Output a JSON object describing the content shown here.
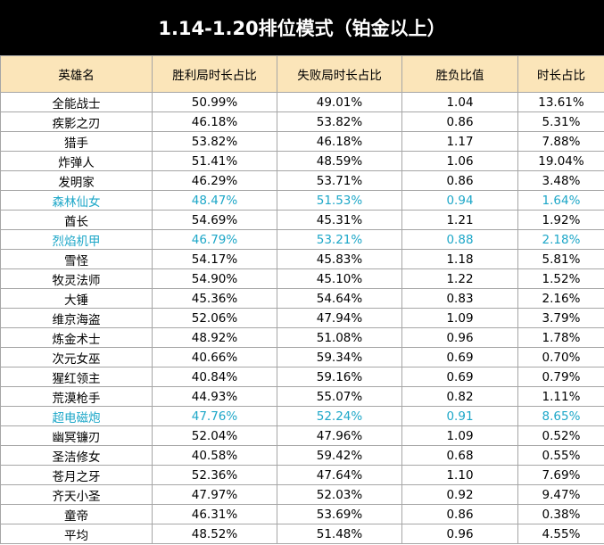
{
  "title": "1.14-1.20排位模式（铂金以上）",
  "colors": {
    "title_bg": "#000000",
    "header_bg": "#fbe5b9",
    "highlight_text": "#1da7c8",
    "border": "#a6a6a6"
  },
  "columns": [
    "英雄名",
    "胜利局时长占比",
    "失败局时长占比",
    "胜负比值",
    "时长占比"
  ],
  "rows": [
    {
      "name": "全能战士",
      "win": "50.99%",
      "lose": "49.01%",
      "ratio": "1.04",
      "share": "13.61%",
      "highlight": false
    },
    {
      "name": "疾影之刃",
      "win": "46.18%",
      "lose": "53.82%",
      "ratio": "0.86",
      "share": "5.31%",
      "highlight": false
    },
    {
      "name": "猎手",
      "win": "53.82%",
      "lose": "46.18%",
      "ratio": "1.17",
      "share": "7.88%",
      "highlight": false
    },
    {
      "name": "炸弹人",
      "win": "51.41%",
      "lose": "48.59%",
      "ratio": "1.06",
      "share": "19.04%",
      "highlight": false
    },
    {
      "name": "发明家",
      "win": "46.29%",
      "lose": "53.71%",
      "ratio": "0.86",
      "share": "3.48%",
      "highlight": false
    },
    {
      "name": "森林仙女",
      "win": "48.47%",
      "lose": "51.53%",
      "ratio": "0.94",
      "share": "1.64%",
      "highlight": true
    },
    {
      "name": "酋长",
      "win": "54.69%",
      "lose": "45.31%",
      "ratio": "1.21",
      "share": "1.92%",
      "highlight": false
    },
    {
      "name": "烈焰机甲",
      "win": "46.79%",
      "lose": "53.21%",
      "ratio": "0.88",
      "share": "2.18%",
      "highlight": true
    },
    {
      "name": "雪怪",
      "win": "54.17%",
      "lose": "45.83%",
      "ratio": "1.18",
      "share": "5.81%",
      "highlight": false
    },
    {
      "name": "牧灵法师",
      "win": "54.90%",
      "lose": "45.10%",
      "ratio": "1.22",
      "share": "1.52%",
      "highlight": false
    },
    {
      "name": "大锤",
      "win": "45.36%",
      "lose": "54.64%",
      "ratio": "0.83",
      "share": "2.16%",
      "highlight": false
    },
    {
      "name": "维京海盗",
      "win": "52.06%",
      "lose": "47.94%",
      "ratio": "1.09",
      "share": "3.79%",
      "highlight": false
    },
    {
      "name": "炼金术士",
      "win": "48.92%",
      "lose": "51.08%",
      "ratio": "0.96",
      "share": "1.78%",
      "highlight": false
    },
    {
      "name": "次元女巫",
      "win": "40.66%",
      "lose": "59.34%",
      "ratio": "0.69",
      "share": "0.70%",
      "highlight": false
    },
    {
      "name": "猩红领主",
      "win": "40.84%",
      "lose": "59.16%",
      "ratio": "0.69",
      "share": "0.79%",
      "highlight": false
    },
    {
      "name": "荒漠枪手",
      "win": "44.93%",
      "lose": "55.07%",
      "ratio": "0.82",
      "share": "1.11%",
      "highlight": false
    },
    {
      "name": "超电磁炮",
      "win": "47.76%",
      "lose": "52.24%",
      "ratio": "0.91",
      "share": "8.65%",
      "highlight": true
    },
    {
      "name": "幽冥镰刃",
      "win": "52.04%",
      "lose": "47.96%",
      "ratio": "1.09",
      "share": "0.52%",
      "highlight": false
    },
    {
      "name": "圣洁修女",
      "win": "40.58%",
      "lose": "59.42%",
      "ratio": "0.68",
      "share": "0.55%",
      "highlight": false
    },
    {
      "name": "苍月之牙",
      "win": "52.36%",
      "lose": "47.64%",
      "ratio": "1.10",
      "share": "7.69%",
      "highlight": false
    },
    {
      "name": "齐天小圣",
      "win": "47.97%",
      "lose": "52.03%",
      "ratio": "0.92",
      "share": "9.47%",
      "highlight": false
    },
    {
      "name": "童帝",
      "win": "46.31%",
      "lose": "53.69%",
      "ratio": "0.86",
      "share": "0.38%",
      "highlight": false
    },
    {
      "name": "平均",
      "win": "48.52%",
      "lose": "51.48%",
      "ratio": "0.96",
      "share": "4.55%",
      "highlight": false
    }
  ]
}
